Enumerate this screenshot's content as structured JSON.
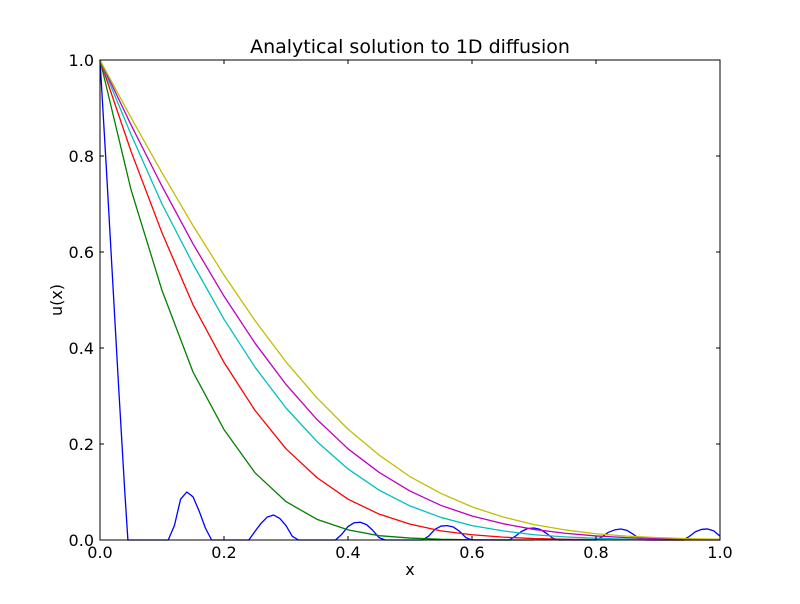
{
  "chart_data": {
    "type": "line",
    "title": "Analytical solution to 1D diffusion",
    "xlabel": "x",
    "ylabel": "u(x)",
    "xlim": [
      0.0,
      1.0
    ],
    "ylim": [
      0.0,
      1.0
    ],
    "grid": false,
    "legend": "none",
    "x_ticks": [
      "0.0",
      "0.2",
      "0.4",
      "0.6",
      "0.8",
      "1.0"
    ],
    "y_ticks": [
      "0.0",
      "0.2",
      "0.4",
      "0.6",
      "0.8",
      "1.0"
    ],
    "series": [
      {
        "color": "#0000ff",
        "x": [
          0.0,
          0.01,
          0.02,
          0.03,
          0.04,
          0.045,
          0.05,
          0.06,
          0.07,
          0.08,
          0.09,
          0.1,
          0.11,
          0.12,
          0.13,
          0.14,
          0.15,
          0.16,
          0.17,
          0.18,
          0.19,
          0.2,
          0.21,
          0.22,
          0.23,
          0.24,
          0.25,
          0.26,
          0.27,
          0.28,
          0.29,
          0.3,
          0.31,
          0.32,
          0.33,
          0.34,
          0.35,
          0.36,
          0.37,
          0.38,
          0.39,
          0.4,
          0.41,
          0.42,
          0.43,
          0.44,
          0.45,
          0.46,
          0.47,
          0.48,
          0.49,
          0.5,
          0.51,
          0.52,
          0.53,
          0.54,
          0.55,
          0.56,
          0.57,
          0.58,
          0.59,
          0.6,
          0.61,
          0.62,
          0.63,
          0.64,
          0.65,
          0.66,
          0.67,
          0.68,
          0.69,
          0.7,
          0.71,
          0.72,
          0.73,
          0.74,
          0.75,
          0.76,
          0.77,
          0.78,
          0.79,
          0.8,
          0.81,
          0.82,
          0.83,
          0.84,
          0.85,
          0.86,
          0.87,
          0.88,
          0.89,
          0.9,
          0.91,
          0.92,
          0.93,
          0.94,
          0.95,
          0.96,
          0.97,
          0.98,
          0.99,
          1.0
        ],
        "y": [
          1.0,
          0.78,
          0.55,
          0.32,
          0.1,
          0.0,
          0.0,
          0.0,
          0.0,
          0.0,
          0.0,
          0.0,
          0.0,
          0.03,
          0.085,
          0.1,
          0.09,
          0.06,
          0.025,
          0.0,
          0.0,
          0.0,
          0.0,
          0.0,
          0.0,
          0.0,
          0.018,
          0.035,
          0.048,
          0.052,
          0.045,
          0.03,
          0.008,
          0.0,
          0.0,
          0.0,
          0.0,
          0.0,
          0.0,
          0.0,
          0.012,
          0.028,
          0.036,
          0.037,
          0.032,
          0.02,
          0.005,
          0.0,
          0.0,
          0.0,
          0.0,
          0.0,
          0.0,
          0.0,
          0.008,
          0.022,
          0.029,
          0.03,
          0.027,
          0.018,
          0.005,
          0.0,
          0.0,
          0.0,
          0.0,
          0.0,
          0.0,
          0.0,
          0.008,
          0.018,
          0.024,
          0.025,
          0.022,
          0.014,
          0.004,
          0.0,
          0.0,
          0.0,
          0.0,
          0.0,
          0.0,
          0.0,
          0.007,
          0.016,
          0.021,
          0.023,
          0.02,
          0.012,
          0.003,
          0.0,
          0.0,
          0.0,
          0.0,
          0.0,
          0.0,
          0.0,
          0.007,
          0.017,
          0.022,
          0.023,
          0.019,
          0.008
        ]
      },
      {
        "color": "#008000",
        "x": [
          0.0,
          0.05,
          0.1,
          0.15,
          0.2,
          0.25,
          0.3,
          0.35,
          0.4,
          0.45,
          0.5,
          0.55,
          0.6,
          0.65,
          0.7
        ],
        "y": [
          1.0,
          0.73,
          0.52,
          0.35,
          0.23,
          0.14,
          0.08,
          0.043,
          0.021,
          0.009,
          0.004,
          0.0015,
          0.0005,
          0.0001,
          0.0
        ]
      },
      {
        "color": "#ff0000",
        "x": [
          0.0,
          0.05,
          0.1,
          0.15,
          0.2,
          0.25,
          0.3,
          0.35,
          0.4,
          0.45,
          0.5,
          0.55,
          0.6,
          0.65,
          0.7,
          0.75,
          0.8,
          0.85,
          0.9,
          0.95,
          1.0
        ],
        "y": [
          1.0,
          0.81,
          0.64,
          0.49,
          0.37,
          0.27,
          0.19,
          0.13,
          0.085,
          0.054,
          0.033,
          0.019,
          0.011,
          0.006,
          0.003,
          0.0015,
          0.0007,
          0.0003,
          0.0001,
          0.0,
          0.0
        ]
      },
      {
        "color": "#00bfbf",
        "x": [
          0.0,
          0.05,
          0.1,
          0.15,
          0.2,
          0.25,
          0.3,
          0.35,
          0.4,
          0.45,
          0.5,
          0.55,
          0.6,
          0.65,
          0.7,
          0.75,
          0.8,
          0.85,
          0.9,
          0.95,
          1.0
        ],
        "y": [
          1.0,
          0.845,
          0.7,
          0.575,
          0.46,
          0.36,
          0.275,
          0.205,
          0.148,
          0.104,
          0.071,
          0.047,
          0.03,
          0.019,
          0.011,
          0.0065,
          0.0035,
          0.0018,
          0.0009,
          0.0004,
          0.0002
        ]
      },
      {
        "color": "#bf00bf",
        "x": [
          0.0,
          0.05,
          0.1,
          0.15,
          0.2,
          0.25,
          0.3,
          0.35,
          0.4,
          0.45,
          0.5,
          0.55,
          0.6,
          0.65,
          0.7,
          0.75,
          0.8,
          0.85,
          0.9,
          0.95,
          1.0
        ],
        "y": [
          1.0,
          0.865,
          0.737,
          0.617,
          0.508,
          0.41,
          0.324,
          0.251,
          0.19,
          0.141,
          0.102,
          0.072,
          0.05,
          0.034,
          0.022,
          0.014,
          0.0085,
          0.005,
          0.003,
          0.0017,
          0.001
        ]
      },
      {
        "color": "#bfbf00",
        "x": [
          0.0,
          0.05,
          0.1,
          0.15,
          0.2,
          0.25,
          0.3,
          0.35,
          0.4,
          0.45,
          0.5,
          0.55,
          0.6,
          0.65,
          0.7,
          0.75,
          0.8,
          0.85,
          0.9,
          0.95,
          1.0
        ],
        "y": [
          1.0,
          0.88,
          0.765,
          0.655,
          0.552,
          0.457,
          0.371,
          0.296,
          0.231,
          0.177,
          0.132,
          0.097,
          0.069,
          0.048,
          0.032,
          0.021,
          0.013,
          0.008,
          0.005,
          0.0028,
          0.0015
        ]
      }
    ]
  }
}
